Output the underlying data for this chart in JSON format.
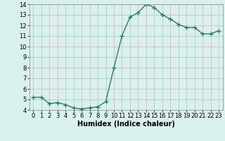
{
  "x": [
    0,
    1,
    2,
    3,
    4,
    5,
    6,
    7,
    8,
    9,
    10,
    11,
    12,
    13,
    14,
    15,
    16,
    17,
    18,
    19,
    20,
    21,
    22,
    23
  ],
  "y": [
    5.2,
    5.2,
    4.6,
    4.7,
    4.5,
    4.2,
    4.1,
    4.2,
    4.3,
    4.8,
    8.0,
    11.0,
    12.8,
    13.2,
    14.0,
    13.7,
    13.0,
    12.6,
    12.1,
    11.8,
    11.8,
    11.2,
    11.2,
    11.5
  ],
  "line_color": "#2e7b6e",
  "marker": "+",
  "markersize": 4,
  "linewidth": 1.0,
  "bg_color": "#d8f0ee",
  "grid_color": "#c8b8b8",
  "xlabel": "Humidex (Indice chaleur)",
  "xlabel_fontsize": 7,
  "tick_fontsize": 6,
  "ylim": [
    4,
    14
  ],
  "xlim": [
    -0.5,
    23.5
  ],
  "yticks": [
    4,
    5,
    6,
    7,
    8,
    9,
    10,
    11,
    12,
    13,
    14
  ],
  "xticks": [
    0,
    1,
    2,
    3,
    4,
    5,
    6,
    7,
    8,
    9,
    10,
    11,
    12,
    13,
    14,
    15,
    16,
    17,
    18,
    19,
    20,
    21,
    22,
    23
  ]
}
